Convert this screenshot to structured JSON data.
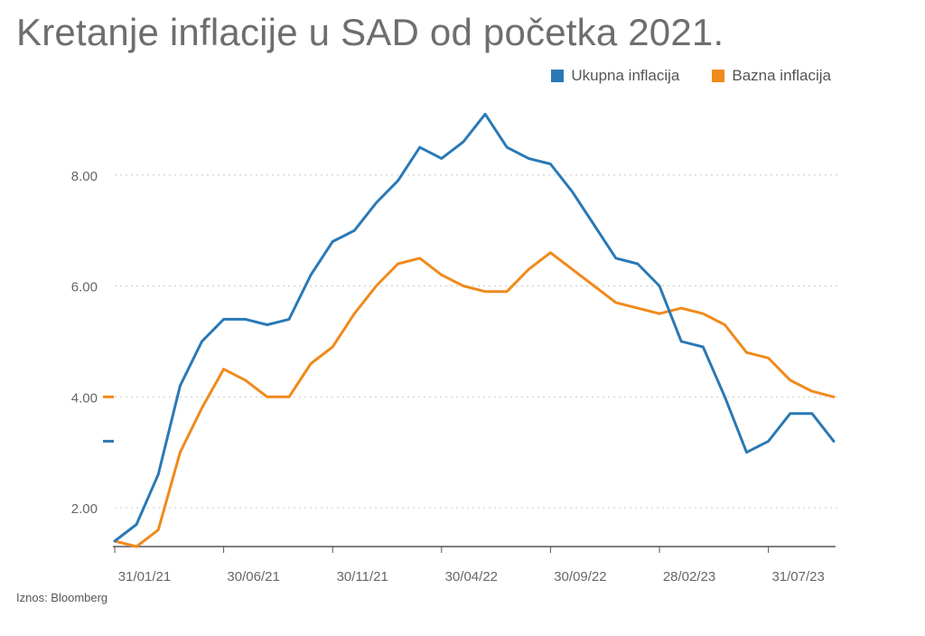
{
  "title": "Kretanje inflacije u SAD od početka 2021.",
  "source": "Iznos: Bloomberg",
  "colors": {
    "total": "#2a79b6",
    "core": "#f08a1c",
    "grid": "#c9c9c9",
    "axis": "#555555",
    "tick_text": "#666666"
  },
  "legend": [
    {
      "label": "Ukupna inflacija",
      "color": "#2a79b6"
    },
    {
      "label": "Bazna inflacija",
      "color": "#f08a1c"
    }
  ],
  "chart_data": {
    "type": "line",
    "x_ticks": [
      {
        "label": "31/01/21",
        "index": 0
      },
      {
        "label": "30/06/21",
        "index": 5
      },
      {
        "label": "30/11/21",
        "index": 10
      },
      {
        "label": "30/04/22",
        "index": 15
      },
      {
        "label": "30/09/22",
        "index": 20
      },
      {
        "label": "28/02/23",
        "index": 25
      },
      {
        "label": "31/07/23",
        "index": 30
      }
    ],
    "y_ticks": [
      "2.00",
      "4.00",
      "6.00",
      "8.00"
    ],
    "y_tick_values": [
      2,
      4,
      6,
      8
    ],
    "ylim": [
      1.3,
      9.3
    ],
    "grid": true,
    "legend_position": "top-right",
    "series": [
      {
        "name": "Ukupna inflacija",
        "color": "#2a79b6",
        "values": [
          1.4,
          1.7,
          2.6,
          4.2,
          5.0,
          5.4,
          5.4,
          5.3,
          5.4,
          6.2,
          6.8,
          7.0,
          7.5,
          7.9,
          8.5,
          8.3,
          8.6,
          9.1,
          8.5,
          8.3,
          8.2,
          7.7,
          7.1,
          6.5,
          6.4,
          6.0,
          5.0,
          4.9,
          4.0,
          3.0,
          3.2,
          3.7,
          3.7,
          3.2
        ]
      },
      {
        "name": "Bazna inflacija",
        "color": "#f08a1c",
        "values": [
          1.4,
          1.3,
          1.6,
          3.0,
          3.8,
          4.5,
          4.3,
          4.0,
          4.0,
          4.6,
          4.9,
          5.5,
          6.0,
          6.4,
          6.5,
          6.2,
          6.0,
          5.9,
          5.9,
          6.3,
          6.6,
          6.3,
          6.0,
          5.7,
          5.6,
          5.5,
          5.6,
          5.5,
          5.3,
          4.8,
          4.7,
          4.3,
          4.1,
          4.0
        ]
      }
    ],
    "last_value_markers": [
      4.0,
      3.2
    ]
  }
}
